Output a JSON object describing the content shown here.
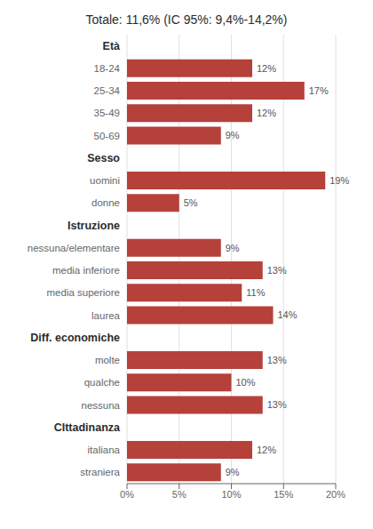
{
  "chart_data": {
    "type": "bar",
    "orientation": "horizontal",
    "title": "Totale: 11,6% (IC 95%: 9,4%-14,2%)",
    "categories": [
      "Età",
      "18-24",
      "25-34",
      "35-49",
      "50-69",
      "Sesso",
      "uomini",
      "donne",
      "Istruzione",
      "nessuna/elementare",
      "media inferiore",
      "media superiore",
      "laurea",
      "Diff. economiche",
      "molte",
      "qualche",
      "nessuna",
      "CIttadinanza",
      "italiana",
      "straniera"
    ],
    "values": [
      null,
      12,
      17,
      12,
      9,
      null,
      19,
      5,
      null,
      9,
      13,
      11,
      14,
      null,
      13,
      10,
      13,
      null,
      12,
      9
    ],
    "value_labels": [
      null,
      "12%",
      "17%",
      "12%",
      "9%",
      null,
      "19%",
      "5%",
      null,
      "9%",
      "13%",
      "11%",
      "14%",
      null,
      "13%",
      "10%",
      "13%",
      null,
      "12%",
      "9%"
    ],
    "data_labels": true,
    "color": "#b5413a",
    "xlim": [
      0,
      20
    ],
    "xticks": [
      {
        "value": 0,
        "label": "0%"
      },
      {
        "value": 5,
        "label": "5%"
      },
      {
        "value": 10,
        "label": "10%"
      },
      {
        "value": 15,
        "label": "15%"
      },
      {
        "value": 20,
        "label": "20%"
      }
    ],
    "grid": true
  }
}
